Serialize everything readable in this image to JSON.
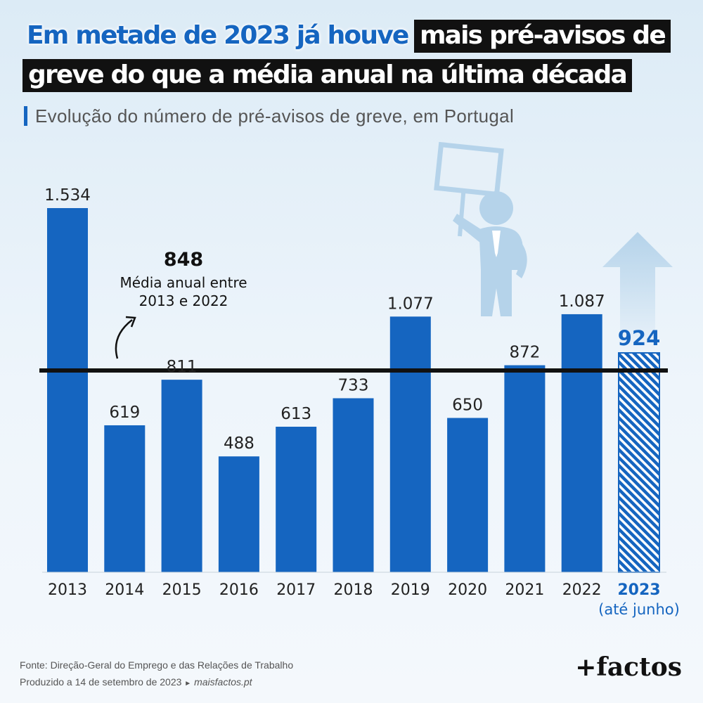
{
  "title": {
    "line1_highlight": "Em metade de 2023 já houve",
    "line1_rest": "mais pré-avisos de",
    "line2": "greve do que a média anual na última década"
  },
  "subtitle": "Evolução do número de pré-avisos de greve, em Portugal",
  "colors": {
    "bar": "#1565c0",
    "accent": "#1565c0",
    "average_line": "#111111",
    "illustration": "#b5d3ea"
  },
  "chart_data": {
    "type": "bar",
    "categories": [
      "2013",
      "2014",
      "2015",
      "2016",
      "2017",
      "2018",
      "2019",
      "2020",
      "2021",
      "2022",
      "2023"
    ],
    "values": [
      1534,
      619,
      811,
      488,
      613,
      733,
      1077,
      650,
      872,
      1087,
      924
    ],
    "value_labels": [
      "1.534",
      "619",
      "811",
      "488",
      "613",
      "733",
      "1.077",
      "650",
      "872",
      "1.087",
      "924"
    ],
    "highlight_index": 10,
    "highlight_sublabel": "(até junho)",
    "ylim": [
      0,
      1534
    ],
    "grid": false,
    "reference_line": {
      "value": 848,
      "value_label": "848",
      "label_line1": "Média anual entre",
      "label_line2": "2013 e 2022"
    }
  },
  "footer": {
    "source": "Fonte: Direção-Geral do Emprego e das Relações de Trabalho",
    "produced": "Produzido a 14 de setembro de 2023",
    "site": "maisfactos.pt"
  },
  "logo": {
    "plus": "+",
    "text": "factos"
  },
  "illustration": "protester-holding-sign-icon"
}
